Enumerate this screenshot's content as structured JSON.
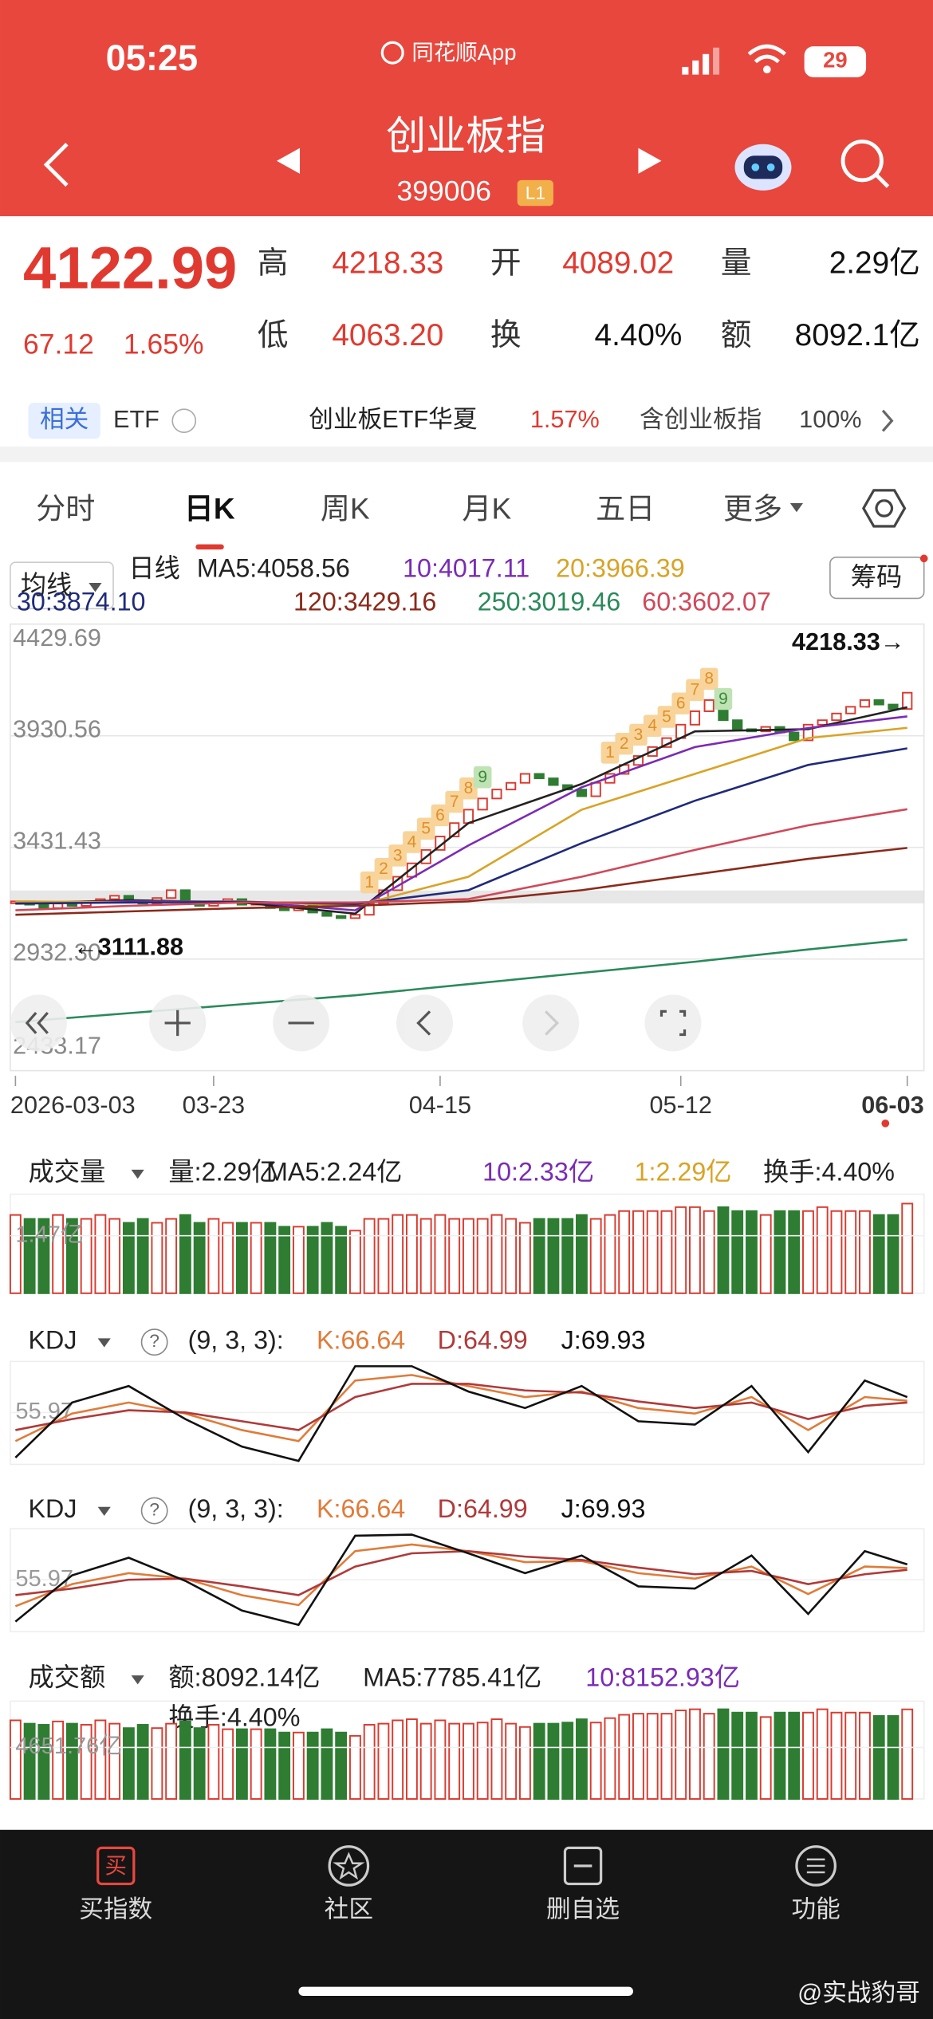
{
  "status_bar": {
    "time": "05:25",
    "app": "同花顺App",
    "battery": "29"
  },
  "header": {
    "title": "创业板指",
    "code": "399006",
    "level": "L1"
  },
  "quote": {
    "price": "4122.99",
    "change": "67.12",
    "change_pct": "1.65%",
    "high_label": "高",
    "high": "4218.33",
    "open_label": "开",
    "open": "4089.02",
    "volume_label": "量",
    "volume": "2.29亿",
    "low_label": "低",
    "low": "4063.20",
    "turnover_label": "换",
    "turnover": "4.40%",
    "amount_label": "额",
    "amount": "8092.1亿"
  },
  "related": {
    "badge": "相关",
    "etf": "ETF",
    "fund": "创业板ETF华夏",
    "fund_pct": "1.57%",
    "contains": "含创业板指",
    "contains_pct": "100%"
  },
  "tabs": [
    "分时",
    "日K",
    "周K",
    "月K",
    "五日",
    "更多"
  ],
  "active_tab": 1,
  "ma_legend": {
    "selector": "均线",
    "period": "日线",
    "chips": "筹码"
  },
  "kline": {
    "ylim": [
      2433.17,
      4429.69
    ],
    "yticks": [
      4429.69,
      3930.56,
      3431.43,
      {
        "value": 2932.3,
        "label": "2932.30"
      },
      2433.17
    ],
    "xticks": [
      {
        "value": 0,
        "label": "2026-03-03"
      },
      {
        "value": 14,
        "label": "03-23"
      },
      {
        "value": 30,
        "label": "04-15"
      },
      {
        "value": 47,
        "label": "05-12"
      },
      {
        "value": 63,
        "label": "06-03"
      }
    ],
    "high_note": "4218.33→",
    "low_note": "←3111.88",
    "closes": [
      3190,
      3175,
      3160,
      3180,
      3170,
      3185,
      3200,
      3215,
      3195,
      3180,
      3205,
      3240,
      3185,
      3170,
      3190,
      3200,
      3175,
      3185,
      3160,
      3150,
      3170,
      3140,
      3125,
      3115,
      3130,
      3180,
      3240,
      3300,
      3360,
      3420,
      3480,
      3540,
      3600,
      3650,
      3690,
      3720,
      3760,
      3740,
      3710,
      3690,
      3660,
      3720,
      3760,
      3800,
      3840,
      3880,
      3920,
      3980,
      4040,
      4090,
      4000,
      3960,
      3950,
      3970,
      3945,
      3910,
      3980,
      4000,
      4030,
      4060,
      4090,
      4070,
      4050,
      4122.99
    ],
    "ma_x": [
      0,
      8,
      16,
      24,
      32,
      40,
      48,
      56,
      63
    ],
    "ma": [
      {
        "label": "MA5:4058.56",
        "color": "#222222",
        "values": [
          3180,
          3195,
          3185,
          3135,
          3540,
          3715,
          3950,
          3960,
          4058
        ]
      },
      {
        "label": "10:4017.11",
        "color": "#7a2bb5",
        "values": [
          3185,
          3190,
          3190,
          3150,
          3440,
          3700,
          3880,
          3965,
          4017
        ]
      },
      {
        "label": "20:3966.39",
        "color": "#d9a326",
        "values": [
          3190,
          3185,
          3190,
          3170,
          3300,
          3600,
          3760,
          3920,
          3966
        ]
      },
      {
        "label": "30:3874.10",
        "color": "#1f2a7a",
        "values": [
          3180,
          3185,
          3188,
          3178,
          3240,
          3450,
          3640,
          3800,
          3874
        ]
      },
      {
        "label": "120:3429.16",
        "color": "#8b2a1a",
        "values": [
          3130,
          3145,
          3160,
          3170,
          3190,
          3240,
          3310,
          3380,
          3429
        ]
      },
      {
        "label": "250:3019.46",
        "color": "#2a8a5a",
        "values": [
          2650,
          2690,
          2730,
          2770,
          2820,
          2870,
          2920,
          2975,
          3019
        ]
      },
      {
        "label": "60:3602.07",
        "color": "#d0485a",
        "values": [
          3150,
          3170,
          3185,
          3185,
          3200,
          3300,
          3420,
          3530,
          3602
        ]
      }
    ],
    "td": [
      {
        "start": 25,
        "labels": [
          "1",
          "2",
          "3",
          "4",
          "5",
          "6",
          "7",
          "8",
          "9"
        ]
      },
      {
        "start": 42,
        "labels": [
          "1",
          "2",
          "3",
          "4",
          "5",
          "6",
          "7",
          "8",
          "9"
        ]
      }
    ]
  },
  "volume": {
    "selector": "成交量",
    "legend": [
      {
        "label": "量:2.29亿",
        "color": "#222222"
      },
      {
        "label": "MA5:2.24亿",
        "color": "#222222"
      },
      {
        "label": "10:2.33亿",
        "color": "#7a2bb5"
      },
      {
        "label": "1:2.29亿",
        "color": "#d9a326"
      },
      {
        "label": "换手:4.40%",
        "color": "#222222"
      }
    ],
    "ylim": [
      0,
      2.4
    ],
    "yticks": [
      {
        "value": 1.47,
        "label": "1.47亿"
      }
    ],
    "values": [
      2.0,
      1.9,
      1.9,
      2.0,
      1.9,
      1.9,
      2.0,
      1.9,
      1.8,
      1.9,
      1.8,
      1.9,
      2.0,
      1.8,
      1.9,
      1.8,
      1.8,
      1.8,
      1.8,
      1.7,
      1.7,
      1.7,
      1.8,
      1.7,
      1.6,
      1.9,
      1.9,
      2.0,
      2.0,
      1.9,
      2.0,
      1.9,
      1.9,
      1.9,
      2.0,
      1.9,
      1.8,
      1.9,
      1.9,
      1.9,
      2.0,
      1.9,
      2.0,
      2.1,
      2.1,
      2.1,
      2.1,
      2.2,
      2.2,
      2.1,
      2.2,
      2.1,
      2.1,
      2.0,
      2.1,
      2.1,
      2.1,
      2.2,
      2.1,
      2.1,
      2.1,
      2.0,
      2.0,
      2.29
    ]
  },
  "kdj": [
    {
      "selector": "KDJ",
      "help": "?",
      "params": "(9, 3, 3):",
      "ylim": [
        10,
        100
      ],
      "yticks": [
        55.97
      ],
      "x": [
        0,
        4,
        8,
        12,
        16,
        20,
        24,
        28,
        32,
        36,
        40,
        44,
        48,
        52,
        56,
        60,
        63
      ],
      "series": [
        {
          "label": "K:66.64",
          "color": "#e07b39",
          "values": [
            30,
            55,
            65,
            55,
            40,
            30,
            85,
            90,
            80,
            70,
            75,
            60,
            55,
            70,
            40,
            70,
            66.64
          ]
        },
        {
          "label": "D:64.99",
          "color": "#b03a3a",
          "values": [
            40,
            50,
            58,
            56,
            48,
            40,
            70,
            82,
            82,
            76,
            74,
            66,
            60,
            65,
            50,
            62,
            64.99
          ]
        },
        {
          "label": "J:69.93",
          "color": "#111111",
          "values": [
            15,
            65,
            80,
            50,
            25,
            12,
            98,
            98,
            75,
            60,
            80,
            48,
            45,
            80,
            20,
            85,
            69.93
          ]
        }
      ]
    },
    {
      "selector": "KDJ",
      "help": "?",
      "params": "(9, 3, 3):",
      "ylim": [
        10,
        100
      ],
      "yticks": [
        55.97
      ],
      "x": [
        0,
        4,
        8,
        12,
        16,
        20,
        24,
        28,
        32,
        36,
        40,
        44,
        48,
        52,
        56,
        60,
        63
      ],
      "series": [
        {
          "label": "K:66.64",
          "color": "#e07b39",
          "values": [
            32,
            52,
            62,
            57,
            42,
            33,
            82,
            88,
            82,
            72,
            73,
            62,
            57,
            68,
            43,
            68,
            66.64
          ]
        },
        {
          "label": "D:64.99",
          "color": "#b03a3a",
          "values": [
            42,
            48,
            56,
            57,
            50,
            42,
            68,
            80,
            82,
            77,
            74,
            67,
            61,
            64,
            52,
            61,
            64.99
          ]
        },
        {
          "label": "J:69.93",
          "color": "#111111",
          "values": [
            18,
            60,
            76,
            55,
            28,
            15,
            96,
            97,
            80,
            62,
            78,
            50,
            48,
            78,
            25,
            82,
            69.93
          ]
        }
      ]
    }
  ],
  "amount": {
    "selector": "成交额",
    "legend": [
      {
        "label": "额:8092.14亿",
        "color": "#222222"
      },
      {
        "label": "MA5:7785.41亿",
        "color": "#222222"
      },
      {
        "label": "10:8152.93亿",
        "color": "#7a2bb5"
      }
    ],
    "turnover": "换手:4.40%",
    "ylim": [
      0,
      8600
    ],
    "yticks": [
      {
        "value": 4651.76,
        "label": "4651.76亿"
      }
    ],
    "values": [
      7100,
      6800,
      6700,
      7000,
      6800,
      6700,
      7100,
      6800,
      6400,
      6700,
      6400,
      6800,
      7000,
      6400,
      6700,
      6300,
      6300,
      6300,
      6300,
      6000,
      6000,
      6000,
      6300,
      6000,
      5700,
      6700,
      6800,
      7100,
      7200,
      6800,
      7100,
      6800,
      6800,
      6900,
      7200,
      6800,
      6500,
      6800,
      6800,
      6900,
      7200,
      6900,
      7300,
      7600,
      7700,
      7700,
      7700,
      8000,
      8100,
      7700,
      8100,
      7800,
      7800,
      7400,
      7800,
      7800,
      7800,
      8100,
      7800,
      7800,
      7800,
      7500,
      7500,
      8092.14
    ]
  },
  "bottom_nav": {
    "buy_icon": "买",
    "items": [
      "买指数",
      "社区",
      "删自选",
      "功能"
    ]
  },
  "watermark": "@实战豹哥"
}
